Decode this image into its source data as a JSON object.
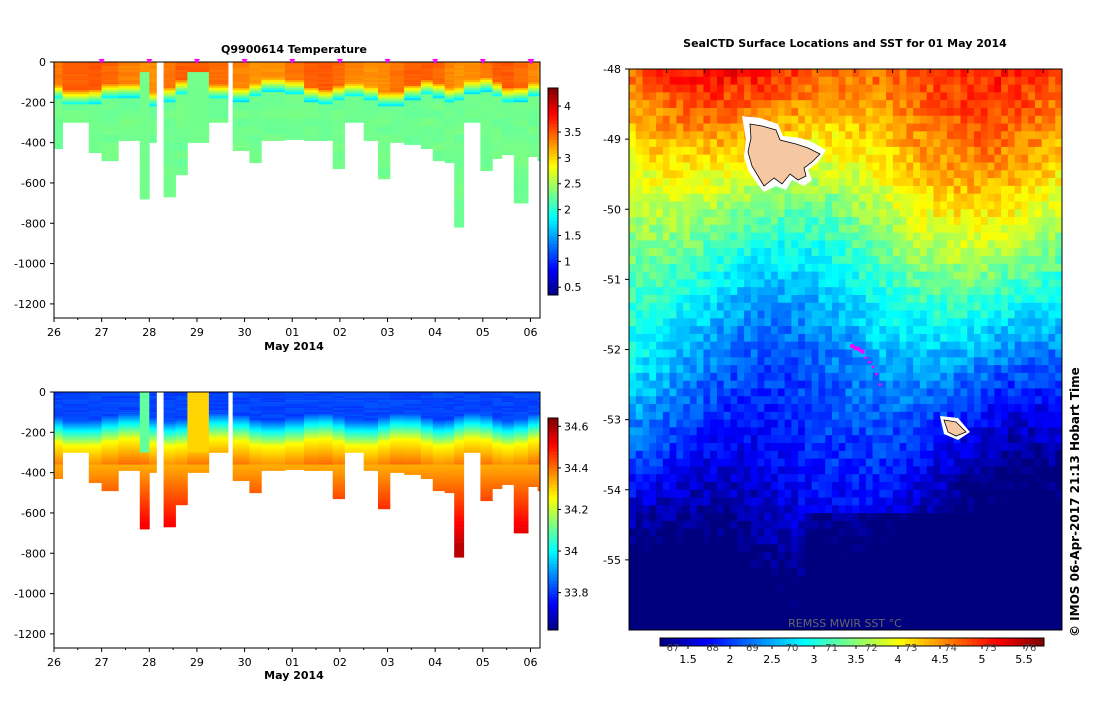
{
  "chart_data": [
    {
      "id": "temp",
      "type": "heatmap",
      "title": "Q9900614  Temperature",
      "xlabel": "May 2014",
      "x_ticks": [
        "26",
        "27",
        "28",
        "29",
        "30",
        "01",
        "02",
        "03",
        "04",
        "05",
        "06"
      ],
      "x_range_days": [
        0,
        10.2
      ],
      "y_ticks": [
        0,
        -200,
        -400,
        -600,
        -800,
        -1000,
        -1200
      ],
      "ylim": [
        -1270,
        0
      ],
      "colorbar_ticks": [
        "0.5",
        "1",
        "1.5",
        "2",
        "2.5",
        "3",
        "3.5",
        "4"
      ],
      "colorbar_range": [
        0.35,
        4.35
      ],
      "profiles": [
        {
          "t": 0.0,
          "w": 0.18,
          "depth": 430
        },
        {
          "t": 0.18,
          "w": 0.55,
          "depth": 300
        },
        {
          "t": 0.73,
          "w": 0.27,
          "depth": 450
        },
        {
          "t": 1.0,
          "w": 0.35,
          "depth": 490
        },
        {
          "t": 1.35,
          "w": 0.45,
          "depth": 390
        },
        {
          "t": 1.8,
          "w": 0.2,
          "depth": 680
        },
        {
          "t": 2.0,
          "w": 0.15,
          "depth": 400
        },
        {
          "t": 2.3,
          "w": 0.25,
          "depth": 670
        },
        {
          "t": 2.55,
          "w": 0.25,
          "depth": 560
        },
        {
          "t": 2.8,
          "w": 0.45,
          "depth": 400
        },
        {
          "t": 3.25,
          "w": 0.4,
          "depth": 300
        },
        {
          "t": 3.75,
          "w": 0.35,
          "depth": 440
        },
        {
          "t": 4.1,
          "w": 0.25,
          "depth": 500
        },
        {
          "t": 4.35,
          "w": 0.5,
          "depth": 390
        },
        {
          "t": 4.85,
          "w": 0.4,
          "depth": 385
        },
        {
          "t": 5.25,
          "w": 0.3,
          "depth": 390
        },
        {
          "t": 5.55,
          "w": 0.3,
          "depth": 390
        },
        {
          "t": 5.85,
          "w": 0.25,
          "depth": 530
        },
        {
          "t": 6.1,
          "w": 0.4,
          "depth": 300
        },
        {
          "t": 6.5,
          "w": 0.3,
          "depth": 390
        },
        {
          "t": 6.8,
          "w": 0.25,
          "depth": 580
        },
        {
          "t": 7.05,
          "w": 0.3,
          "depth": 400
        },
        {
          "t": 7.35,
          "w": 0.35,
          "depth": 410
        },
        {
          "t": 7.7,
          "w": 0.25,
          "depth": 430
        },
        {
          "t": 7.95,
          "w": 0.25,
          "depth": 490
        },
        {
          "t": 8.2,
          "w": 0.2,
          "depth": 500
        },
        {
          "t": 8.4,
          "w": 0.2,
          "depth": 820
        },
        {
          "t": 8.6,
          "w": 0.35,
          "depth": 300
        },
        {
          "t": 8.95,
          "w": 0.25,
          "depth": 540
        },
        {
          "t": 9.2,
          "w": 0.2,
          "depth": 480
        },
        {
          "t": 9.4,
          "w": 0.25,
          "depth": 460
        },
        {
          "t": 9.65,
          "w": 0.3,
          "depth": 700
        },
        {
          "t": 9.95,
          "w": 0.2,
          "depth": 470
        },
        {
          "t": 10.15,
          "w": 0.05,
          "depth": 490
        }
      ],
      "marker_days": [
        1,
        2,
        3,
        4,
        5,
        6,
        7,
        8,
        9,
        10,
        10.02
      ]
    },
    {
      "id": "sal",
      "type": "heatmap",
      "title": "",
      "xlabel": "May 2014",
      "x_ticks": [
        "26",
        "27",
        "28",
        "29",
        "30",
        "01",
        "02",
        "03",
        "04",
        "05",
        "06"
      ],
      "x_range_days": [
        0,
        10.2
      ],
      "y_ticks": [
        0,
        -200,
        -400,
        -600,
        -800,
        -1000,
        -1200
      ],
      "ylim": [
        -1270,
        0
      ],
      "colorbar_ticks": [
        "33.8",
        "34",
        "34.2",
        "34.4",
        "34.6"
      ],
      "colorbar_range": [
        33.62,
        34.64
      ]
    },
    {
      "id": "sst",
      "type": "heatmap",
      "title": "SealCTD Surface Locations and SST for 01 May 2014",
      "y_ticks": [
        "-48",
        "-49",
        "-50",
        "-51",
        "-52",
        "-53",
        "-54",
        "-55"
      ],
      "ylim": [
        -56,
        -48
      ],
      "colorbar_top_ticks": [
        "67",
        "68",
        "69",
        "70",
        "71",
        "72",
        "73",
        "74",
        "75",
        "76"
      ],
      "colorbar_bottom_ticks": [
        "1.5",
        "2",
        "2.5",
        "3",
        "3.5",
        "4",
        "4.5",
        "5",
        "5.5"
      ],
      "colorbar_label": "REMSS MWIR SST °C",
      "seal_track_lat": [
        -51.95,
        -51.98,
        -52.0,
        -52.03,
        -52.12,
        -52.18,
        -52.25,
        -52.35,
        -52.5
      ]
    }
  ],
  "footer": {
    "credit": "© IMOS 06-Apr-2017 21:13 Hobart Time"
  },
  "palette": {
    "jet": [
      "#00007f",
      "#0000ff",
      "#007fff",
      "#00ffff",
      "#7fff7f",
      "#ffff00",
      "#ff7f00",
      "#ff0000",
      "#7f0000"
    ],
    "seal_marker": "#ff00ff",
    "land": "#f5c8a3"
  }
}
